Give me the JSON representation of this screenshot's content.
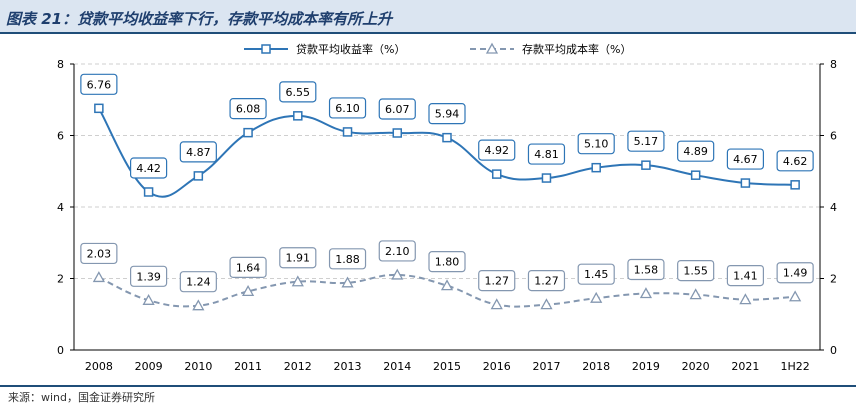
{
  "header": {
    "title": "图表 21：贷款平均收益率下行，存款平均成本率有所上升"
  },
  "footer": {
    "source": "来源：wind，国金证券研究所"
  },
  "colors": {
    "series1": "#2e75b6",
    "series2": "#8497b0",
    "grid": "#cfcfcf",
    "axis": "#000000"
  },
  "chart_data": {
    "type": "line",
    "title": "图表 21：贷款平均收益率下行，存款平均成本率有所上升",
    "categories": [
      "2008",
      "2009",
      "2010",
      "2011",
      "2012",
      "2013",
      "2014",
      "2015",
      "2016",
      "2017",
      "2018",
      "2019",
      "2020",
      "2021",
      "1H22"
    ],
    "ylim": [
      0,
      8
    ],
    "yticks": [
      0,
      2,
      4,
      6,
      8
    ],
    "secondary_yticks": [
      0,
      2,
      4,
      6,
      8
    ],
    "legend_position": "top-center",
    "series": [
      {
        "name": "贷款平均收益率（%）",
        "marker": "square",
        "style": "solid",
        "values": [
          6.76,
          4.42,
          4.87,
          6.08,
          6.55,
          6.1,
          6.07,
          5.94,
          4.92,
          4.81,
          5.1,
          5.17,
          4.89,
          4.67,
          4.62
        ],
        "labels": [
          "6.76",
          "4.42",
          "4.87",
          "6.08",
          "6.55",
          "6.10",
          "6.07",
          "5.94",
          "4.92",
          "4.81",
          "5.10",
          "5.17",
          "4.89",
          "4.67",
          "4.62"
        ]
      },
      {
        "name": "存款平均成本率（%）",
        "marker": "triangle",
        "style": "dashed",
        "values": [
          2.03,
          1.39,
          1.24,
          1.64,
          1.91,
          1.88,
          2.1,
          1.8,
          1.27,
          1.27,
          1.45,
          1.58,
          1.55,
          1.41,
          1.49
        ],
        "labels": [
          "2.03",
          "1.39",
          "1.24",
          "1.64",
          "1.91",
          "1.88",
          "2.10",
          "1.80",
          "1.27",
          "1.27",
          "1.45",
          "1.58",
          "1.55",
          "1.41",
          "1.49"
        ]
      }
    ]
  }
}
